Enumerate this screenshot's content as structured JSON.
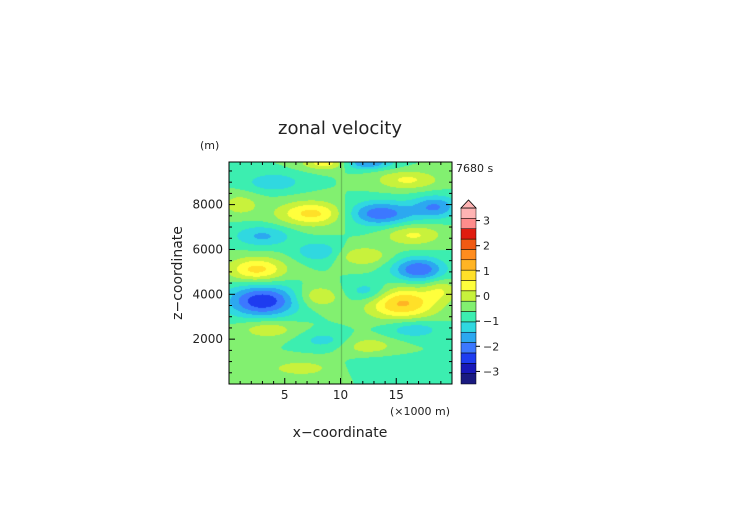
{
  "chart_data": {
    "type": "heatmap",
    "title": "zonal velocity",
    "time_label": "7680 s",
    "xlabel": "x−coordinate",
    "ylabel": "z−coordinate",
    "x_unit": "(×1000 m)",
    "y_unit": "(m)",
    "xlim": [
      0,
      20
    ],
    "ylim": [
      0,
      9900
    ],
    "x_ticks": [
      {
        "value": 5,
        "label": "5"
      },
      {
        "value": 10,
        "label": "10"
      },
      {
        "value": 15,
        "label": "15"
      }
    ],
    "y_ticks": [
      {
        "value": 2000,
        "label": "2000"
      },
      {
        "value": 4000,
        "label": "4000"
      },
      {
        "value": 6000,
        "label": "6000"
      },
      {
        "value": 8000,
        "label": "8000"
      }
    ],
    "colorbar": {
      "vmin": -3.5,
      "vmax": 3.5,
      "step": 0.5,
      "extend_top": true,
      "tick_labels": [
        {
          "value": 3,
          "label": "3"
        },
        {
          "value": 2,
          "label": "2"
        },
        {
          "value": 1,
          "label": "1"
        },
        {
          "value": 0,
          "label": "0"
        },
        {
          "value": -1,
          "label": "−1"
        },
        {
          "value": -2,
          "label": "−2"
        },
        {
          "value": -3,
          "label": "−3"
        }
      ],
      "colors": [
        "#1a1a80",
        "#1818b8",
        "#1e3cf0",
        "#3c78ff",
        "#2ca8f0",
        "#30d8e0",
        "#3ceeb0",
        "#82f070",
        "#c8f23c",
        "#ffff3c",
        "#ffe028",
        "#ffb424",
        "#ff8c1e",
        "#f05a14",
        "#e01c10",
        "#ff8c8c",
        "#ffb4b4"
      ]
    },
    "field_blobs": [
      {
        "x": 3.0,
        "z": 3700,
        "sx": 2.2,
        "sz": 500,
        "v": -2.4
      },
      {
        "x": 15.5,
        "z": 3600,
        "sx": 2.2,
        "sz": 500,
        "v": 2.1
      },
      {
        "x": 2.5,
        "z": 5100,
        "sx": 1.8,
        "sz": 380,
        "v": 1.7
      },
      {
        "x": 17.0,
        "z": 5100,
        "sx": 1.6,
        "sz": 380,
        "v": -2.0
      },
      {
        "x": 7.5,
        "z": 7600,
        "sx": 2.2,
        "sz": 380,
        "v": 1.7
      },
      {
        "x": 13.5,
        "z": 7600,
        "sx": 2.2,
        "sz": 380,
        "v": -1.9
      },
      {
        "x": 18.5,
        "z": 7900,
        "sx": 1.4,
        "sz": 350,
        "v": -1.5
      },
      {
        "x": 3.0,
        "z": 6600,
        "sx": 1.8,
        "sz": 330,
        "v": -1.1
      },
      {
        "x": 16.5,
        "z": 6650,
        "sx": 1.8,
        "sz": 330,
        "v": 1.1
      },
      {
        "x": 8.0,
        "z": 5900,
        "sx": 1.4,
        "sz": 300,
        "v": -1.0
      },
      {
        "x": 12.0,
        "z": 5700,
        "sx": 1.6,
        "sz": 300,
        "v": 1.0
      },
      {
        "x": 8.0,
        "z": 3900,
        "sx": 1.4,
        "sz": 350,
        "v": 1.0
      },
      {
        "x": 12.5,
        "z": 4100,
        "sx": 1.4,
        "sz": 330,
        "v": -1.0
      },
      {
        "x": 3.5,
        "z": 2450,
        "sx": 1.8,
        "sz": 300,
        "v": 0.9
      },
      {
        "x": 16.5,
        "z": 2450,
        "sx": 1.8,
        "sz": 300,
        "v": -0.9
      },
      {
        "x": 8.5,
        "z": 1950,
        "sx": 1.6,
        "sz": 280,
        "v": -0.7
      },
      {
        "x": 12.5,
        "z": 1700,
        "sx": 1.8,
        "sz": 300,
        "v": 0.8
      },
      {
        "x": 6.5,
        "z": 700,
        "sx": 2.5,
        "sz": 300,
        "v": 0.7
      },
      {
        "x": 14.0,
        "z": 800,
        "sx": 2.5,
        "sz": 300,
        "v": -0.5
      },
      {
        "x": 4.0,
        "z": 9000,
        "sx": 1.8,
        "sz": 300,
        "v": -0.9
      },
      {
        "x": 16.0,
        "z": 9100,
        "sx": 2.0,
        "sz": 300,
        "v": 1.1
      },
      {
        "x": 9.0,
        "z": 9850,
        "sx": 1.6,
        "sz": 200,
        "v": 1.6
      },
      {
        "x": 12.0,
        "z": 9850,
        "sx": 1.8,
        "sz": 200,
        "v": -1.7
      },
      {
        "x": 19.0,
        "z": 4200,
        "sx": 1.0,
        "sz": 350,
        "v": 0.8
      },
      {
        "x": 1.0,
        "z": 8000,
        "sx": 1.2,
        "sz": 350,
        "v": 0.8
      }
    ]
  }
}
